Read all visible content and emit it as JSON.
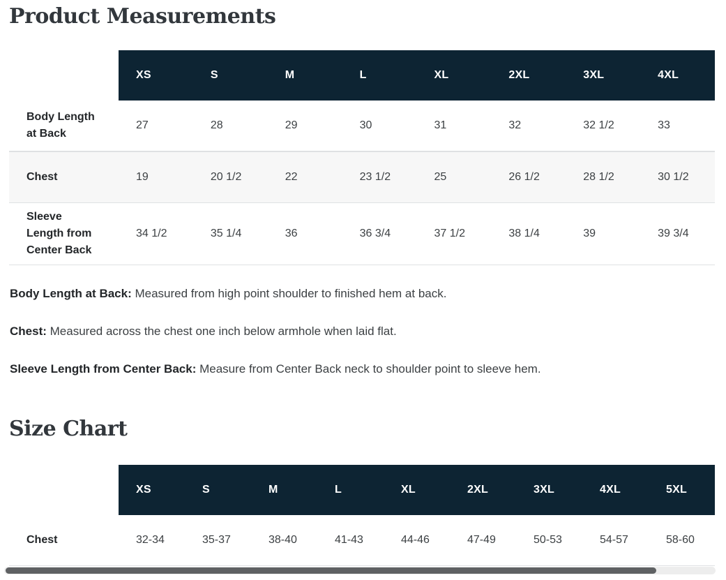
{
  "colors": {
    "header_bg": "#0d2433",
    "header_text": "#ffffff",
    "stripe_bg": "#f7f7f7",
    "row_border": "#dfe1e3",
    "title_text": "#32373c",
    "label_text": "#232629",
    "value_text": "#3c4043",
    "scrollbar_thumb": "#5f6163",
    "scrollbar_track": "#ededed"
  },
  "product_measurements": {
    "title": "Product Measurements",
    "columns": [
      "XS",
      "S",
      "M",
      "L",
      "XL",
      "2XL",
      "3XL",
      "4XL"
    ],
    "rows": [
      {
        "label": "Body Length at Back",
        "values": [
          "27",
          "28",
          "29",
          "30",
          "31",
          "32",
          "32 1/2",
          "33"
        ]
      },
      {
        "label": "Chest",
        "values": [
          "19",
          "20 1/2",
          "22",
          "23 1/2",
          "25",
          "26 1/2",
          "28 1/2",
          "30 1/2"
        ]
      },
      {
        "label": "Sleeve Length from Center Back",
        "values": [
          "34 1/2",
          "35 1/4",
          "36",
          "36 3/4",
          "37 1/2",
          "38 1/4",
          "39",
          "39 3/4"
        ]
      }
    ],
    "notes": [
      {
        "term": "Body Length at Back:",
        "text": "Measured from high point shoulder to finished hem at back."
      },
      {
        "term": "Chest:",
        "text": "Measured across the chest one inch below armhole when laid flat."
      },
      {
        "term": "Sleeve Length from Center Back:",
        "text": "Measure from Center Back neck to shoulder point to sleeve hem."
      }
    ]
  },
  "size_chart": {
    "title": "Size Chart",
    "columns": [
      "XS",
      "S",
      "M",
      "L",
      "XL",
      "2XL",
      "3XL",
      "4XL",
      "5XL"
    ],
    "rows": [
      {
        "label": "Chest",
        "values": [
          "32-34",
          "35-37",
          "38-40",
          "41-43",
          "44-46",
          "47-49",
          "50-53",
          "54-57",
          "58-60"
        ]
      }
    ]
  }
}
